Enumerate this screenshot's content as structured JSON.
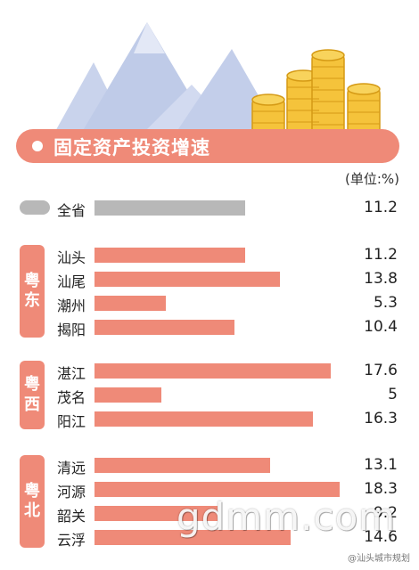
{
  "title": "固定资产投资增速",
  "unit": "(单位:%)",
  "watermark": "gdmm.com",
  "weibo_tag": "@汕头城市规划",
  "colors": {
    "accent": "#ef8a78",
    "bar": "#ef8a78",
    "total_bar": "#b8b8b8",
    "mountain": "#c4cfe9",
    "coin": "#f5c33b"
  },
  "chart_data": {
    "type": "bar",
    "orientation": "horizontal",
    "title": "固定资产投资增速",
    "unit": "(单位:%)",
    "xlim": [
      0,
      19
    ],
    "total": {
      "name": "全省",
      "value": 11.2
    },
    "groups": [
      {
        "label": "粤东",
        "items": [
          {
            "name": "汕头",
            "value": 11.2
          },
          {
            "name": "汕尾",
            "value": 13.8
          },
          {
            "name": "潮州",
            "value": 5.3
          },
          {
            "name": "揭阳",
            "value": 10.4
          }
        ]
      },
      {
        "label": "粤西",
        "items": [
          {
            "name": "湛江",
            "value": 17.6
          },
          {
            "name": "茂名",
            "value": 5
          },
          {
            "name": "阳江",
            "value": 16.3
          }
        ]
      },
      {
        "label": "粤北",
        "items": [
          {
            "name": "清远",
            "value": 13.1
          },
          {
            "name": "河源",
            "value": 18.3
          },
          {
            "name": "韶关",
            "value": 9.2
          },
          {
            "name": "云浮",
            "value": 14.6
          }
        ]
      }
    ]
  }
}
